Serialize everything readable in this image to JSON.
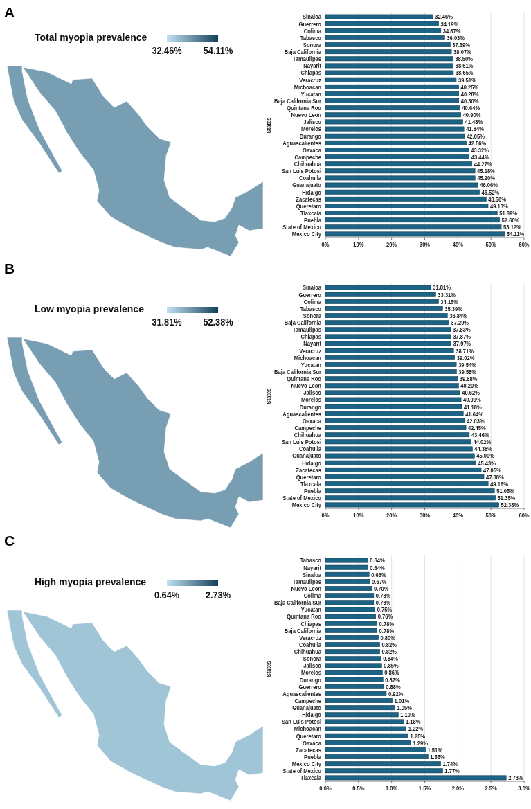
{
  "chart_data": [
    {
      "type": "other",
      "title": "Total myopia prevalence",
      "annotations": [
        "A",
        "32.46%",
        "54.11%"
      ]
    },
    {
      "type": "bar",
      "orientation": "horizontal",
      "ylabel": "States",
      "categories": [
        "Sinaloa",
        "Guerrero",
        "Colima",
        "Tabasco",
        "Sonora",
        "Baja California",
        "Tamaulipas",
        "Nayarit",
        "Chiapas",
        "Veracruz",
        "Michoacan",
        "Yucatan",
        "Baja California Sur",
        "Quintana Roo",
        "Nuevo Leon",
        "Jalisco",
        "Morelos",
        "Durango",
        "Aguascalientes",
        "Oaxaca",
        "Campeche",
        "Chihuahua",
        "San Luis Potosi",
        "Coahuila",
        "Guanajuato",
        "Hidalgo",
        "Zacatecas",
        "Queretaro",
        "Tlaxcala",
        "Puebla",
        "State of Mexico",
        "Mexico City"
      ],
      "values": [
        32.46,
        34.19,
        34.87,
        36.03,
        37.69,
        38.07,
        38.5,
        38.61,
        38.65,
        39.51,
        40.25,
        40.28,
        40.3,
        40.64,
        40.9,
        41.48,
        41.84,
        42.05,
        42.56,
        43.32,
        43.44,
        44.27,
        45.18,
        45.2,
        46.06,
        46.52,
        48.56,
        49.13,
        51.89,
        52.6,
        53.12,
        54.11
      ],
      "value_labels": [
        "32.46%",
        "34.19%",
        "34.87%",
        "36.03%",
        "37.69%",
        "38.07%",
        "38.50%",
        "38.61%",
        "38.65%",
        "39.51%",
        "40.25%",
        "40.28%",
        "40.30%",
        "40.64%",
        "40.90%",
        "41.48%",
        "41.84%",
        "42.05%",
        "42.56%",
        "43.32%",
        "43.44%",
        "44.27%",
        "45.18%",
        "45.20%",
        "46.06%",
        "46.52%",
        "48.56%",
        "49.13%",
        "51.89%",
        "52.60%",
        "53.12%",
        "54.11%"
      ],
      "color": "#1d6385",
      "xlim": [
        0,
        60
      ],
      "xticks": [
        {
          "value": 0,
          "label": "0%"
        },
        {
          "value": 10,
          "label": "10%"
        },
        {
          "value": 20,
          "label": "20%"
        },
        {
          "value": 30,
          "label": "30%"
        },
        {
          "value": 40,
          "label": "40%"
        },
        {
          "value": 50,
          "label": "50%"
        },
        {
          "value": 60,
          "label": "60%"
        }
      ],
      "grid": "x"
    },
    {
      "type": "other",
      "title": "Low myopia prevalence",
      "annotations": [
        "B",
        "31.81%",
        "52.38%"
      ]
    },
    {
      "type": "bar",
      "orientation": "horizontal",
      "ylabel": "States",
      "categories": [
        "Sinaloa",
        "Guerrero",
        "Colima",
        "Tabasco",
        "Sonora",
        "Baja California",
        "Tamaulipas",
        "Chiapas",
        "Nayarit",
        "Veracruz",
        "Michoacan",
        "Yucatan",
        "Baja California Sur",
        "Quintana Roo",
        "Nuevo Leon",
        "Jalisco",
        "Morelos",
        "Durango",
        "Aguascalientes",
        "Oaxaca",
        "Campeche",
        "Chihuahua",
        "San Luis Potosi",
        "Coahuila",
        "Guanajuato",
        "Hidalgo",
        "Zacatecas",
        "Queretaro",
        "Tlaxcala",
        "Puebla",
        "State of Mexico",
        "Mexico City"
      ],
      "values": [
        31.81,
        33.31,
        34.15,
        35.39,
        36.84,
        37.29,
        37.83,
        37.87,
        37.97,
        38.71,
        39.02,
        39.54,
        39.58,
        39.88,
        40.2,
        40.62,
        40.99,
        41.18,
        41.64,
        42.03,
        42.45,
        43.46,
        44.02,
        44.38,
        45.0,
        45.43,
        47.05,
        47.88,
        49.16,
        51.05,
        51.35,
        52.38
      ],
      "value_labels": [
        "31.81%",
        "33.31%",
        "34.15%",
        "35.39%",
        "36.84%",
        "37.29%",
        "37.83%",
        "37.87%",
        "37.97%",
        "38.71%",
        "39.02%",
        "39.54%",
        "39.58%",
        "39.88%",
        "40.20%",
        "40.62%",
        "40.99%",
        "41.18%",
        "41.64%",
        "42.03%",
        "42.45%",
        "43.46%",
        "44.02%",
        "44.38%",
        "45.00%",
        "45.43%",
        "47.05%",
        "47.88%",
        "49.16%",
        "51.05%",
        "51.35%",
        "52.38%"
      ],
      "color": "#1d6385",
      "xlim": [
        0,
        60
      ],
      "xticks": [
        {
          "value": 0,
          "label": "0%"
        },
        {
          "value": 10,
          "label": "10%"
        },
        {
          "value": 20,
          "label": "20%"
        },
        {
          "value": 30,
          "label": "30%"
        },
        {
          "value": 40,
          "label": "40%"
        },
        {
          "value": 50,
          "label": "50%"
        },
        {
          "value": 60,
          "label": "60%"
        }
      ],
      "grid": "x"
    },
    {
      "type": "other",
      "title": "High myopia prevalence",
      "annotations": [
        "C",
        "0.64%",
        "2.73%"
      ]
    },
    {
      "type": "bar",
      "orientation": "horizontal",
      "ylabel": "States",
      "categories": [
        "Tabasco",
        "Nayarit",
        "Sinaloa",
        "Tamaulipas",
        "Nuevo Leon",
        "Colima",
        "Baja California Sur",
        "Yucatan",
        "Quintana Roo",
        "Chiapas",
        "Baja California",
        "Veracruz",
        "Coahuila",
        "Chihuahua",
        "Sonora",
        "Jalisco",
        "Morelos",
        "Durango",
        "Guerrero",
        "Aguascalientes",
        "Campeche",
        "Guanajuato",
        "Hidalgo",
        "San Luis Potosi",
        "Michoacan",
        "Queretaro",
        "Oaxaca",
        "Zacatecas",
        "Puebla",
        "Mexico City",
        "State of Mexico",
        "Tlaxcala"
      ],
      "values": [
        0.64,
        0.64,
        0.66,
        0.67,
        0.7,
        0.73,
        0.73,
        0.75,
        0.76,
        0.78,
        0.78,
        0.8,
        0.82,
        0.82,
        0.84,
        0.85,
        0.86,
        0.87,
        0.88,
        0.92,
        1.01,
        1.05,
        1.1,
        1.18,
        1.22,
        1.25,
        1.29,
        1.51,
        1.55,
        1.74,
        1.77,
        2.73
      ],
      "value_labels": [
        "0.64%",
        "0.64%",
        "0.66%",
        "0.67%",
        "0.70%",
        "0.73%",
        "0.73%",
        "0.75%",
        "0.76%",
        "0.78%",
        "0.78%",
        "0.80%",
        "0.82%",
        "0.82%",
        "0.84%",
        "0.85%",
        "0.86%",
        "0.87%",
        "0.88%",
        "0.92%",
        "1.01%",
        "1.05%",
        "1.10%",
        "1.18%",
        "1.22%",
        "1.25%",
        "1.29%",
        "1.51%",
        "1.55%",
        "1.74%",
        "1.77%",
        "2.73%"
      ],
      "color": "#1d6385",
      "xlim": [
        0,
        3
      ],
      "xticks": [
        {
          "value": 0,
          "label": "0.0%"
        },
        {
          "value": 0.5,
          "label": "0.5%"
        },
        {
          "value": 1,
          "label": "1.0%"
        },
        {
          "value": 1.5,
          "label": "1.5%"
        },
        {
          "value": 2,
          "label": "2.0%"
        },
        {
          "value": 2.5,
          "label": "2.5%"
        },
        {
          "value": 3,
          "label": "3.0%"
        }
      ],
      "grid": "x"
    }
  ]
}
